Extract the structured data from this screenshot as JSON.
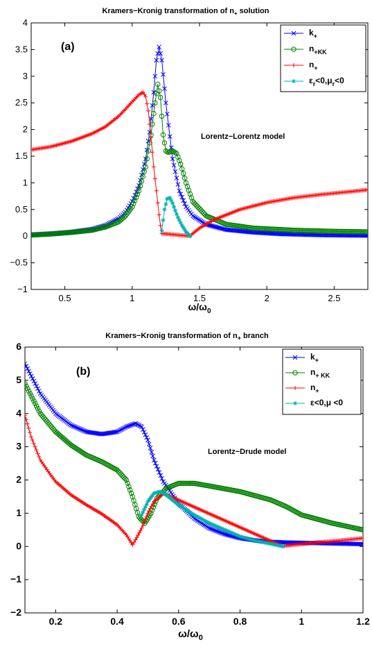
{
  "chart_data": [
    {
      "type": "line",
      "title": "Kramers−Kronig transformation of n",
      "title_sub": "+",
      "title_suffix": " solution",
      "panel_label": "(a)",
      "annotation": "Lorentz−Lorentz model",
      "xlabel_main": "ω/ω",
      "xlabel_sub": "0",
      "ylabel": "",
      "xlim": [
        0.25,
        2.75
      ],
      "ylim": [
        -1,
        4
      ],
      "xticks": [
        0.5,
        1,
        1.5,
        2,
        2.5
      ],
      "xtick_labels": [
        "0.5",
        "1",
        "1.5",
        "2",
        "2.5"
      ],
      "yticks": [
        -1,
        -0.5,
        0,
        0.5,
        1,
        1.5,
        2,
        2.5,
        3,
        3.5,
        4
      ],
      "ytick_labels": [
        "−1",
        "−0.5",
        "0",
        "0.5",
        "1",
        "1.5",
        "2",
        "2.5",
        "3",
        "3.5",
        "4"
      ],
      "grid": false,
      "legend_position": "top-right",
      "series": [
        {
          "name": "k",
          "name_sub": "+",
          "name_sup": "",
          "name_extra": "",
          "color": "#0000ff",
          "marker": "x",
          "x": [
            0.25,
            0.4,
            0.55,
            0.7,
            0.8,
            0.9,
            0.95,
            1.0,
            1.05,
            1.1,
            1.13,
            1.16,
            1.18,
            1.2,
            1.22,
            1.25,
            1.3,
            1.35,
            1.4,
            1.45,
            1.55,
            1.7,
            1.9,
            2.1,
            2.4,
            2.75
          ],
          "y": [
            0.03,
            0.05,
            0.08,
            0.13,
            0.2,
            0.33,
            0.45,
            0.65,
            0.95,
            1.45,
            1.95,
            2.7,
            3.3,
            3.55,
            3.3,
            2.5,
            1.45,
            0.85,
            0.55,
            0.38,
            0.22,
            0.12,
            0.07,
            0.04,
            0.02,
            0.01
          ]
        },
        {
          "name": "n",
          "name_sub": "+KK",
          "name_sup": "",
          "name_extra": "",
          "color": "#008000",
          "marker": "o",
          "x": [
            0.25,
            0.4,
            0.55,
            0.7,
            0.8,
            0.9,
            0.95,
            1.0,
            1.05,
            1.1,
            1.14,
            1.17,
            1.19,
            1.21,
            1.23,
            1.25,
            1.27,
            1.3,
            1.33,
            1.36,
            1.4,
            1.45,
            1.55,
            1.7,
            1.9,
            2.2,
            2.5,
            2.75
          ],
          "y": [
            0.02,
            0.04,
            0.07,
            0.11,
            0.17,
            0.27,
            0.38,
            0.55,
            0.85,
            1.3,
            1.9,
            2.5,
            2.85,
            2.6,
            1.9,
            1.6,
            1.57,
            1.6,
            1.55,
            1.35,
            1.0,
            0.65,
            0.38,
            0.22,
            0.15,
            0.11,
            0.09,
            0.08
          ]
        },
        {
          "name": "n",
          "name_sub": "+",
          "name_sup": "",
          "name_extra": "",
          "color": "#ff0000",
          "marker": "+",
          "x": [
            0.25,
            0.4,
            0.55,
            0.7,
            0.8,
            0.9,
            0.95,
            1.0,
            1.05,
            1.08,
            1.1,
            1.12,
            1.14,
            1.16,
            1.18,
            1.2,
            1.21,
            1.22,
            1.43,
            1.45,
            1.5,
            1.6,
            1.8,
            2.0,
            2.2,
            2.4,
            2.6,
            2.75
          ],
          "y": [
            1.62,
            1.68,
            1.78,
            1.92,
            2.05,
            2.25,
            2.38,
            2.52,
            2.65,
            2.7,
            2.62,
            2.35,
            1.85,
            1.3,
            0.85,
            0.4,
            0.2,
            0.05,
            0.0,
            0.05,
            0.15,
            0.3,
            0.5,
            0.63,
            0.72,
            0.78,
            0.83,
            0.87
          ]
        },
        {
          "name": "ε",
          "name_sub": "r",
          "name_sup": "",
          "name_extra": "<0,μ|r|<0",
          "color": "#00b0b0",
          "marker": "*",
          "x": [
            1.22,
            1.23,
            1.24,
            1.26,
            1.28,
            1.3,
            1.32,
            1.34,
            1.37,
            1.4,
            1.43
          ],
          "y": [
            0.1,
            0.3,
            0.5,
            0.7,
            0.72,
            0.62,
            0.48,
            0.35,
            0.2,
            0.08,
            0.0
          ]
        }
      ]
    },
    {
      "type": "line",
      "title": "Kramers−Kronig transformation of n",
      "title_sub": "+",
      "title_suffix": " branch",
      "panel_label": "(b)",
      "annotation": "Lorentz−Drude model",
      "xlabel_main": "ω/ω",
      "xlabel_sub": "0",
      "ylabel": "",
      "xlim": [
        0.1,
        1.2
      ],
      "ylim": [
        -2,
        6
      ],
      "xticks": [
        0.2,
        0.4,
        0.6,
        0.8,
        1,
        1.2
      ],
      "xtick_labels": [
        "0.2",
        "0.4",
        "0.6",
        "0.8",
        "1",
        "1.2"
      ],
      "yticks": [
        -2,
        -1,
        0,
        1,
        2,
        3,
        4,
        5,
        6
      ],
      "ytick_labels": [
        "−2",
        "−1",
        "0",
        "1",
        "2",
        "3",
        "4",
        "5",
        "6"
      ],
      "grid": false,
      "legend_position": "top-right",
      "series": [
        {
          "name": "k",
          "name_sub": "+",
          "name_sup": "",
          "name_extra": "",
          "color": "#0000ff",
          "marker": "x",
          "x": [
            0.1,
            0.15,
            0.2,
            0.25,
            0.3,
            0.35,
            0.4,
            0.43,
            0.46,
            0.48,
            0.5,
            0.52,
            0.55,
            0.6,
            0.65,
            0.7,
            0.75,
            0.8,
            0.85,
            0.9,
            0.95,
            1.0,
            1.1,
            1.2
          ],
          "y": [
            5.5,
            4.6,
            4.0,
            3.65,
            3.45,
            3.38,
            3.45,
            3.6,
            3.7,
            3.6,
            3.2,
            2.6,
            1.95,
            1.3,
            0.85,
            0.55,
            0.37,
            0.25,
            0.18,
            0.14,
            0.12,
            0.11,
            0.09,
            0.07
          ]
        },
        {
          "name": "n",
          "name_sub": "+ KK",
          "name_sup": "",
          "name_extra": "",
          "color": "#008000",
          "marker": "o",
          "x": [
            0.1,
            0.15,
            0.2,
            0.25,
            0.3,
            0.35,
            0.4,
            0.43,
            0.45,
            0.47,
            0.49,
            0.51,
            0.53,
            0.56,
            0.6,
            0.65,
            0.7,
            0.8,
            0.9,
            0.95,
            1.0,
            1.1,
            1.2
          ],
          "y": [
            4.9,
            4.0,
            3.45,
            3.05,
            2.75,
            2.55,
            2.3,
            2.0,
            1.5,
            0.9,
            0.7,
            1.0,
            1.45,
            1.75,
            1.9,
            1.9,
            1.82,
            1.65,
            1.4,
            1.2,
            0.95,
            0.7,
            0.5
          ]
        },
        {
          "name": "n",
          "name_sub": "+",
          "name_sup": "",
          "name_extra": "",
          "color": "#ff0000",
          "marker": "+",
          "x": [
            0.1,
            0.12,
            0.15,
            0.18,
            0.2,
            0.25,
            0.3,
            0.35,
            0.4,
            0.43,
            0.45,
            0.46,
            0.48,
            0.5,
            0.52,
            0.55,
            0.94,
            0.95,
            1.0,
            1.05,
            1.1,
            1.15,
            1.2
          ],
          "y": [
            3.95,
            3.3,
            2.6,
            2.2,
            1.95,
            1.55,
            1.25,
            0.98,
            0.65,
            0.35,
            0.05,
            0.2,
            0.55,
            1.0,
            1.35,
            1.6,
            0.0,
            0.02,
            0.07,
            0.12,
            0.16,
            0.2,
            0.25
          ]
        },
        {
          "name": "ε<0,μ <0",
          "name_sub": "",
          "name_sup": "",
          "name_extra": "",
          "color": "#00b0b0",
          "marker": "*",
          "x": [
            0.48,
            0.5,
            0.52,
            0.54,
            0.56,
            0.6,
            0.65,
            0.7,
            0.75,
            0.8,
            0.85,
            0.9,
            0.94
          ],
          "y": [
            0.95,
            1.35,
            1.6,
            1.65,
            1.55,
            1.25,
            0.95,
            0.7,
            0.5,
            0.3,
            0.17,
            0.08,
            0.0
          ]
        }
      ]
    }
  ]
}
